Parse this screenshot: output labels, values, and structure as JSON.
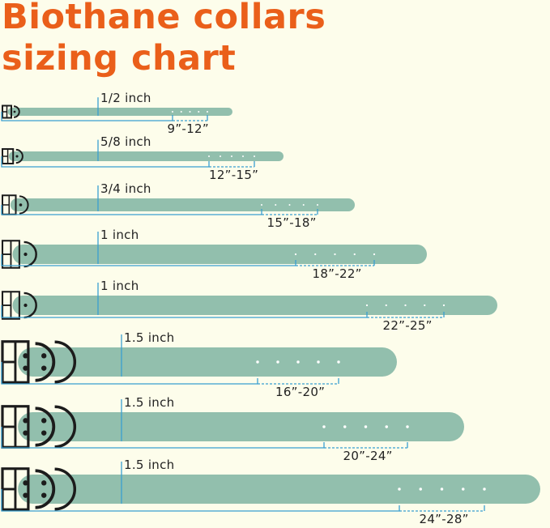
{
  "title": {
    "line1": "Biothane collars",
    "line2": "sizing chart"
  },
  "colors": {
    "title": "#ea5f1a",
    "strap": "#92bfad",
    "measure_line": "#3a9fd0",
    "background": "#fdfdeb",
    "hardware": "#1c1c1c"
  },
  "collars": [
    {
      "width": "1/2 inch",
      "size_range": "9”-12”"
    },
    {
      "width": "5/8 inch",
      "size_range": "12”-15”"
    },
    {
      "width": "3/4 inch",
      "size_range": "15”-18”"
    },
    {
      "width": "1 inch",
      "size_range": "18”-22”"
    },
    {
      "width": "1 inch",
      "size_range": "22”-25”"
    },
    {
      "width": "1.5 inch",
      "size_range": "16”-20”"
    },
    {
      "width": "1.5 inch",
      "size_range": "20”-24”"
    },
    {
      "width": "1.5 inch",
      "size_range": "24”-28”"
    }
  ]
}
